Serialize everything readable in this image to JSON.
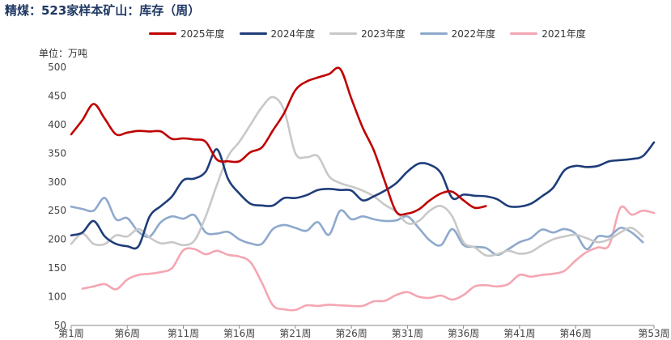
{
  "chart_data": {
    "type": "line",
    "title": "精煤：523家样本矿山：库存（周）",
    "unit": "单位：万吨",
    "ylim": [
      50,
      500
    ],
    "yticks": [
      50,
      100,
      150,
      200,
      250,
      300,
      350,
      400,
      450,
      500
    ],
    "xlim": [
      1,
      53
    ],
    "xtick_values": [
      1,
      6,
      11,
      16,
      21,
      26,
      31,
      36,
      41,
      46,
      53
    ],
    "xtick_labels": [
      "第1周",
      "第6周",
      "第11周",
      "第16周",
      "第21周",
      "第26周",
      "第31周",
      "第36周",
      "第41周",
      "第46周",
      "第53周"
    ],
    "legend_position": "top",
    "series": [
      {
        "name": "2025年度",
        "color": "#c00000",
        "x": [
          1,
          2,
          3,
          4,
          5,
          6,
          7,
          8,
          9,
          10,
          11,
          12,
          13,
          14,
          15,
          16,
          17,
          18,
          19,
          20,
          21,
          22,
          23,
          24,
          25,
          26,
          27,
          28,
          29,
          30,
          31,
          32,
          33,
          34,
          35,
          36,
          37,
          38
        ],
        "values": [
          383,
          408,
          436,
          410,
          383,
          386,
          389,
          388,
          388,
          375,
          376,
          374,
          370,
          339,
          336,
          336,
          352,
          360,
          390,
          420,
          460,
          475,
          482,
          488,
          497,
          445,
          395,
          355,
          300,
          248,
          245,
          252,
          268,
          280,
          283,
          268,
          255,
          258
        ]
      },
      {
        "name": "2024年度",
        "color": "#1f3d7a",
        "x": [
          1,
          2,
          3,
          4,
          5,
          6,
          7,
          8,
          9,
          10,
          11,
          12,
          13,
          14,
          15,
          16,
          17,
          18,
          19,
          20,
          21,
          22,
          23,
          24,
          25,
          26,
          27,
          28,
          29,
          30,
          31,
          32,
          33,
          34,
          35,
          36,
          37,
          38,
          39,
          40,
          41,
          42,
          43,
          44,
          45,
          46,
          47,
          48,
          49,
          50,
          51,
          52,
          53
        ],
        "values": [
          207,
          212,
          232,
          205,
          192,
          188,
          188,
          240,
          258,
          275,
          303,
          306,
          318,
          357,
          305,
          280,
          262,
          259,
          259,
          272,
          272,
          277,
          286,
          288,
          286,
          285,
          268,
          275,
          285,
          298,
          318,
          332,
          330,
          315,
          272,
          278,
          276,
          275,
          270,
          258,
          257,
          262,
          275,
          290,
          320,
          328,
          326,
          328,
          336,
          338,
          340,
          345,
          369
        ]
      },
      {
        "name": "2023年度",
        "color": "#c8c8c8",
        "x": [
          1,
          2,
          3,
          4,
          5,
          6,
          7,
          8,
          9,
          10,
          11,
          12,
          13,
          14,
          15,
          16,
          17,
          18,
          19,
          20,
          21,
          22,
          23,
          24,
          25,
          26,
          27,
          28,
          29,
          30,
          31,
          32,
          33,
          34,
          35,
          36,
          37,
          38,
          39,
          40,
          41,
          42,
          43,
          44,
          45,
          46,
          47,
          48,
          49,
          50,
          51,
          52
        ],
        "values": [
          192,
          210,
          192,
          192,
          207,
          205,
          218,
          203,
          193,
          195,
          190,
          198,
          240,
          295,
          345,
          370,
          400,
          430,
          448,
          425,
          350,
          343,
          345,
          310,
          298,
          292,
          285,
          275,
          260,
          248,
          228,
          232,
          250,
          258,
          240,
          195,
          186,
          172,
          174,
          180,
          175,
          178,
          190,
          200,
          205,
          208,
          202,
          195,
          200,
          212,
          220,
          205
        ]
      },
      {
        "name": "2022年度",
        "color": "#8ea9cc",
        "x": [
          1,
          2,
          3,
          4,
          5,
          6,
          7,
          8,
          9,
          10,
          11,
          12,
          13,
          14,
          15,
          16,
          17,
          18,
          19,
          20,
          21,
          22,
          23,
          24,
          25,
          26,
          27,
          28,
          29,
          30,
          31,
          32,
          33,
          34,
          35,
          36,
          37,
          38,
          39,
          40,
          41,
          42,
          43,
          44,
          45,
          46,
          47,
          48,
          49,
          50,
          51,
          52
        ],
        "values": [
          257,
          253,
          250,
          272,
          235,
          237,
          213,
          205,
          230,
          240,
          236,
          242,
          212,
          210,
          213,
          200,
          193,
          192,
          218,
          225,
          220,
          215,
          230,
          208,
          250,
          235,
          240,
          235,
          232,
          233,
          240,
          220,
          198,
          190,
          218,
          190,
          187,
          185,
          173,
          183,
          195,
          202,
          217,
          212,
          218,
          210,
          183,
          205,
          205,
          220,
          212,
          195
        ]
      },
      {
        "name": "2021年度",
        "color": "#f4a6b2",
        "x": [
          2,
          3,
          4,
          5,
          6,
          7,
          8,
          9,
          10,
          11,
          12,
          13,
          14,
          15,
          16,
          17,
          18,
          19,
          20,
          21,
          22,
          23,
          24,
          25,
          26,
          27,
          28,
          29,
          30,
          31,
          32,
          33,
          34,
          35,
          36,
          37,
          38,
          39,
          40,
          41,
          42,
          43,
          44,
          45,
          46,
          47,
          48,
          49,
          50,
          51,
          52,
          53
        ],
        "values": [
          114,
          118,
          122,
          113,
          130,
          138,
          140,
          143,
          150,
          181,
          183,
          174,
          180,
          173,
          170,
          160,
          125,
          85,
          78,
          77,
          85,
          84,
          86,
          85,
          84,
          84,
          92,
          93,
          103,
          108,
          100,
          98,
          102,
          95,
          103,
          118,
          120,
          118,
          122,
          138,
          135,
          138,
          140,
          145,
          163,
          178,
          186,
          190,
          255,
          243,
          250,
          246
        ]
      }
    ]
  }
}
